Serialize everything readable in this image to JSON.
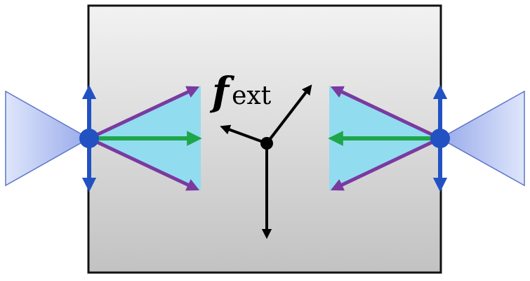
{
  "label": {
    "force_symbol": "f",
    "force_subscript": "ext"
  },
  "colors": {
    "body_top": "#f2f2f2",
    "body_bottom": "#c2c2c2",
    "body_stroke": "#111111",
    "triangle_fill": "#92dcf0",
    "cone_light": "#dfe6fb",
    "cone_dark": "#97a9ea",
    "cone_stroke": "#5b75c9",
    "vertical_arrow": "#2251c2",
    "node": "#2251c2",
    "purple_arrow": "#7a3aa0",
    "green_arrow": "#1fa64a",
    "force_arrow": "#000000"
  }
}
